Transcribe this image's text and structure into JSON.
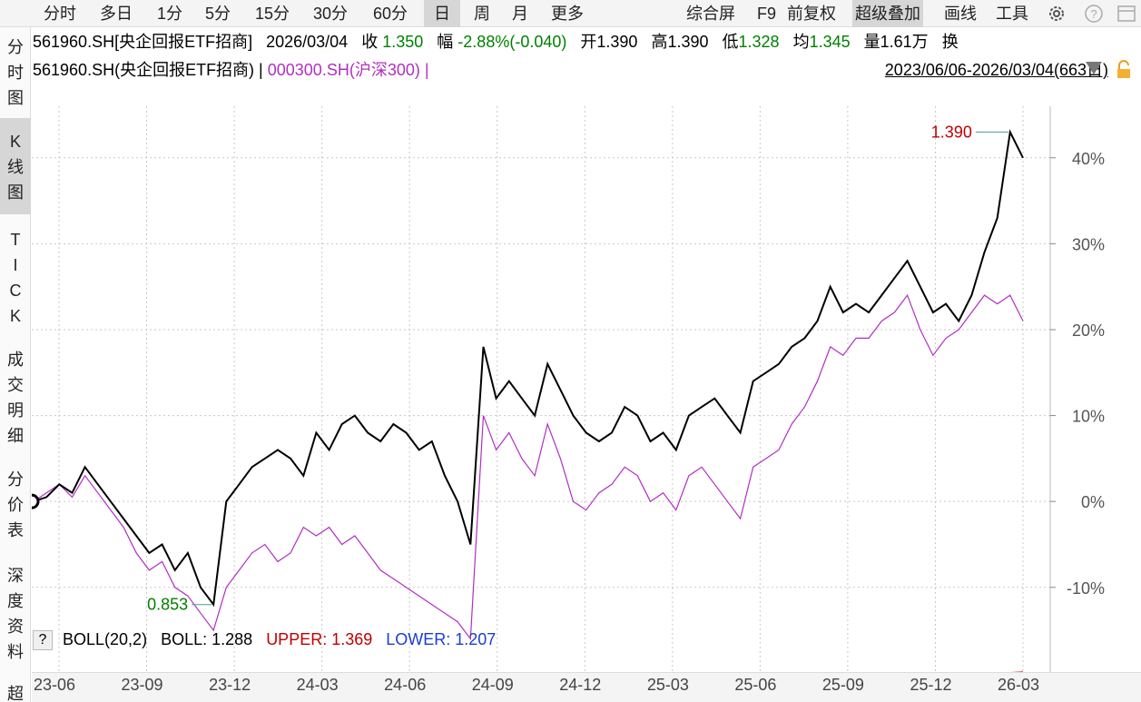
{
  "toolbar": {
    "tabs": [
      "分时",
      "多日",
      "1分",
      "5分",
      "15分",
      "30分",
      "60分",
      "日",
      "周",
      "月",
      "更多"
    ],
    "active_tab": "日",
    "right_items": [
      "综合屏",
      "F9",
      "前复权",
      "超级叠加",
      "画线",
      "工具"
    ],
    "active_right": "超级叠加",
    "icons": [
      "gear-icon",
      "help-icon",
      "window-icon"
    ]
  },
  "sidebar": {
    "items": [
      "分时图",
      "K线图",
      "TICK",
      "成交明细",
      "分价表",
      "深度资料",
      "超"
    ],
    "active": "K线图"
  },
  "info": {
    "code_name": "561960.SH[央企回报ETF招商]",
    "date": "2026/03/04",
    "close_label": "收",
    "close_value": "1.350",
    "change_label": "幅",
    "change_value": "-2.88%(-0.040)",
    "open_label": "开",
    "open_value": "1.390",
    "high_label": "高",
    "high_value": "1.390",
    "low_label": "低",
    "low_value": "1.328",
    "avg_label": "均",
    "avg_value": "1.345",
    "volume_label": "量",
    "volume_value": "1.61万",
    "turnover_label": "换"
  },
  "legend": {
    "main_series": "561960.SH(央企回报ETF招商) |",
    "overlay_series": "000300.SH(沪深300) |",
    "range": "2023/06/06-2026/03/04(663日)"
  },
  "indicator": {
    "help": "?",
    "name": "BOLL(20,2)",
    "boll_label": "BOLL: 1.288",
    "upper_label": "UPPER: 1.369",
    "lower_label": "LOWER: 1.207"
  },
  "colors": {
    "main_line": "#000000",
    "overlay_line": "#b030c0",
    "up": "#c00000",
    "down": "#008000",
    "lower": "#1a3cd8",
    "grid": "#c8c8c8",
    "active_bg": "#d6d6d6"
  },
  "chart_data": {
    "type": "line",
    "x_ticks": [
      "23-06",
      "23-09",
      "23-12",
      "24-03",
      "24-06",
      "24-09",
      "24-12",
      "25-03",
      "25-06",
      "25-09",
      "25-12",
      "26-03"
    ],
    "y_ticks": [
      "40%",
      "30%",
      "20%",
      "10%",
      "0%",
      "-10%"
    ],
    "ylim": [
      -17,
      46
    ],
    "max_annotation": "1.390",
    "min_annotation": "0.853",
    "series": [
      {
        "name": "561960.SH(央企回报ETF招商)",
        "values_pct": [
          0,
          0.5,
          2,
          1,
          4,
          2,
          0,
          -2,
          -4,
          -6,
          -5,
          -8,
          -6,
          -10,
          -12,
          0,
          2,
          4,
          5,
          6,
          5,
          3,
          8,
          6,
          9,
          10,
          8,
          7,
          9,
          8,
          6,
          7,
          3,
          0,
          -5,
          18,
          12,
          14,
          12,
          10,
          16,
          13,
          10,
          8,
          7,
          8,
          11,
          10,
          7,
          8,
          6,
          10,
          11,
          12,
          10,
          8,
          14,
          15,
          16,
          18,
          19,
          21,
          25,
          22,
          23,
          22,
          24,
          26,
          28,
          25,
          22,
          23,
          21,
          24,
          29,
          33,
          43,
          40
        ]
      },
      {
        "name": "000300.SH(沪深300)",
        "values_pct": [
          0,
          1,
          2,
          0.5,
          3,
          1,
          -1,
          -3,
          -6,
          -8,
          -7,
          -10,
          -11,
          -13,
          -15,
          -10,
          -8,
          -6,
          -5,
          -7,
          -6,
          -3,
          -4,
          -3,
          -5,
          -4,
          -6,
          -8,
          -9,
          -10,
          -11,
          -12,
          -13,
          -14,
          -16,
          10,
          6,
          8,
          5,
          3,
          9,
          5,
          0,
          -1,
          1,
          2,
          4,
          3,
          0,
          1,
          -1,
          3,
          4,
          2,
          0,
          -2,
          4,
          5,
          6,
          9,
          11,
          14,
          18,
          17,
          19,
          19,
          21,
          22,
          24,
          20,
          17,
          19,
          20,
          22,
          24,
          23,
          24,
          21
        ]
      }
    ],
    "boll_values": {
      "boll": 1.288,
      "upper": 1.369,
      "lower": 1.207
    }
  }
}
